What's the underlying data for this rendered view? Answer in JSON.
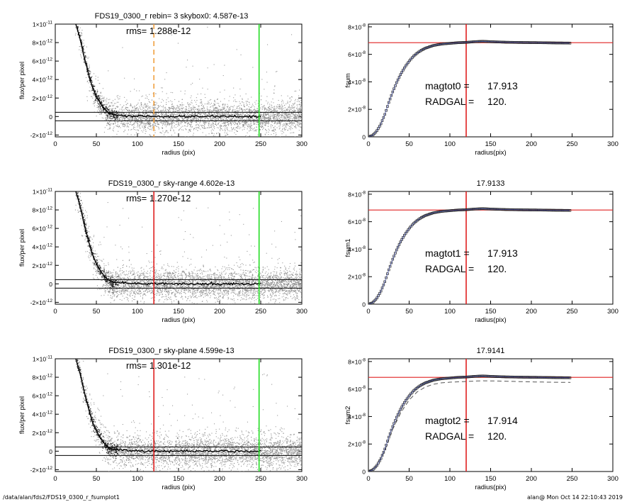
{
  "footer": {
    "path": "/data/alan/fds2/FDS19_0300_r_fsumplot1",
    "stamp": "alan@  Mon Oct 14 22:10:43 2019"
  },
  "colors": {
    "axes": "#000000",
    "scatter": "#9a9a9a",
    "profile": "#000000",
    "radgal_line": "#e02020",
    "boundary_line": "#22dd22",
    "rebin_line": "#f0a040",
    "curve_marker": "#222222",
    "curve_fill": "#3b4bb0"
  },
  "chart_data": [
    {
      "type": "scatter",
      "panel": "left-top",
      "title": "FDS19_0300_r rebin= 3    skybox0:  4.587e-13",
      "annotation": "rms= 1.288e-12",
      "xlabel": "radius (pix)",
      "ylabel": "flux/per pixel",
      "xlim": [
        0,
        300
      ],
      "ylim": [
        -2.2e-12,
        1e-11
      ],
      "xticks": [
        "0",
        "50",
        "100",
        "150",
        "200",
        "250",
        "300"
      ],
      "yticks": [
        {
          "value": -2e-12,
          "mant": "-2×10",
          "exp": "-12"
        },
        {
          "value": 0,
          "mant": "0",
          "exp": ""
        },
        {
          "value": 2e-12,
          "mant": "2×10",
          "exp": "-12"
        },
        {
          "value": 4e-12,
          "mant": "4×10",
          "exp": "-12"
        },
        {
          "value": 6e-12,
          "mant": "6×10",
          "exp": "-12"
        },
        {
          "value": 8e-12,
          "mant": "8×10",
          "exp": "-12"
        },
        {
          "value": 1e-11,
          "mant": "1×10",
          "exp": "-11"
        }
      ],
      "hlines": [
        4.6e-13,
        -4.6e-13
      ],
      "vlines": [
        {
          "x": 120,
          "color": "#f0a040",
          "dashed": true
        },
        {
          "x": 248,
          "color": "#22dd22",
          "dashed": false
        }
      ],
      "profile": {
        "x": [
          25,
          30,
          35,
          40,
          45,
          50,
          55,
          60,
          65,
          70,
          80,
          90,
          100,
          120,
          150,
          200,
          250
        ],
        "y": [
          1e-11,
          8.5e-12,
          6.5e-12,
          4.8e-12,
          3.2e-12,
          2.2e-12,
          1.4e-12,
          8e-13,
          4e-13,
          2e-13,
          1e-13,
          5e-14,
          3e-14,
          1e-14,
          0,
          0,
          0
        ]
      }
    },
    {
      "type": "scatter",
      "panel": "left-middle",
      "title": "FDS19_0300_r sky-range  4.602e-13",
      "annotation": "rms= 1.270e-12",
      "xlabel": "radius (pix)",
      "ylabel": "flux/per pixel",
      "xlim": [
        0,
        300
      ],
      "ylim": [
        -2.2e-12,
        1e-11
      ],
      "xticks": [
        "0",
        "50",
        "100",
        "150",
        "200",
        "250",
        "300"
      ],
      "yticks": [
        {
          "value": -2e-12,
          "mant": "-2×10",
          "exp": "-12"
        },
        {
          "value": 0,
          "mant": "0",
          "exp": ""
        },
        {
          "value": 2e-12,
          "mant": "2×10",
          "exp": "-12"
        },
        {
          "value": 4e-12,
          "mant": "4×10",
          "exp": "-12"
        },
        {
          "value": 6e-12,
          "mant": "6×10",
          "exp": "-12"
        },
        {
          "value": 8e-12,
          "mant": "8×10",
          "exp": "-12"
        },
        {
          "value": 1e-11,
          "mant": "1×10",
          "exp": "-11"
        }
      ],
      "hlines": [
        4.6e-13,
        -4.6e-13
      ],
      "vlines": [
        {
          "x": 120,
          "color": "#e02020",
          "dashed": false
        },
        {
          "x": 248,
          "color": "#22dd22",
          "dashed": false
        }
      ],
      "profile": {
        "x": [
          25,
          30,
          35,
          40,
          45,
          50,
          55,
          60,
          65,
          70,
          80,
          90,
          100,
          120,
          150,
          200,
          250
        ],
        "y": [
          1e-11,
          8.5e-12,
          6.5e-12,
          4.8e-12,
          3.2e-12,
          2.2e-12,
          1.4e-12,
          8e-13,
          4e-13,
          2e-13,
          1e-13,
          5e-14,
          3e-14,
          1e-14,
          0,
          0,
          0
        ]
      }
    },
    {
      "type": "scatter",
      "panel": "left-bottom",
      "title": "FDS19_0300_r sky-plane  4.599e-13",
      "annotation": "rms= 1.301e-12",
      "xlabel": "radius (pix)",
      "ylabel": "flux/per pixel",
      "xlim": [
        0,
        300
      ],
      "ylim": [
        -2.2e-12,
        1e-11
      ],
      "xticks": [
        "0",
        "50",
        "100",
        "150",
        "200",
        "250",
        "300"
      ],
      "yticks": [
        {
          "value": -2e-12,
          "mant": "-2×10",
          "exp": "-12"
        },
        {
          "value": 0,
          "mant": "0",
          "exp": ""
        },
        {
          "value": 2e-12,
          "mant": "2×10",
          "exp": "-12"
        },
        {
          "value": 4e-12,
          "mant": "4×10",
          "exp": "-12"
        },
        {
          "value": 6e-12,
          "mant": "6×10",
          "exp": "-12"
        },
        {
          "value": 8e-12,
          "mant": "8×10",
          "exp": "-12"
        },
        {
          "value": 1e-11,
          "mant": "1×10",
          "exp": "-11"
        }
      ],
      "hlines": [
        4.6e-13,
        -4.6e-13
      ],
      "vlines": [
        {
          "x": 120,
          "color": "#e02020",
          "dashed": false
        },
        {
          "x": 248,
          "color": "#22dd22",
          "dashed": false
        }
      ],
      "profile": {
        "x": [
          25,
          30,
          35,
          40,
          45,
          50,
          55,
          60,
          65,
          70,
          80,
          90,
          100,
          120,
          150,
          200,
          250
        ],
        "y": [
          1e-11,
          8.5e-12,
          6.5e-12,
          4.8e-12,
          3.2e-12,
          2.2e-12,
          1.4e-12,
          8e-13,
          4e-13,
          2e-13,
          1e-13,
          5e-14,
          3e-14,
          1e-14,
          0,
          0,
          0
        ]
      }
    },
    {
      "type": "line",
      "panel": "right-top",
      "title": "",
      "xlabel": "radius(pix)",
      "ylabel": "fsum",
      "xlim": [
        0,
        300
      ],
      "ylim": [
        0,
        8.2e-08
      ],
      "xticks": [
        "0",
        "50",
        "100",
        "150",
        "200",
        "250",
        "300"
      ],
      "yticks": [
        {
          "value": 0,
          "mant": "0",
          "exp": ""
        },
        {
          "value": 2e-08,
          "mant": "2×10",
          "exp": "-8"
        },
        {
          "value": 4e-08,
          "mant": "4×10",
          "exp": "-8"
        },
        {
          "value": 6e-08,
          "mant": "6×10",
          "exp": "-8"
        },
        {
          "value": 8e-08,
          "mant": "8×10",
          "exp": "-8"
        }
      ],
      "annotations": [
        {
          "label": "magtot0 =",
          "value": "17.913"
        },
        {
          "label": "RADGAL =",
          "value": "120."
        }
      ],
      "hline": 6.85e-08,
      "vline": 120,
      "curve": {
        "x": [
          0,
          5,
          10,
          15,
          20,
          25,
          30,
          35,
          40,
          45,
          50,
          55,
          60,
          65,
          70,
          75,
          80,
          90,
          100,
          110,
          120,
          130,
          140,
          150,
          170,
          190,
          210,
          230,
          248
        ],
        "y": [
          0,
          1e-09,
          4e-09,
          9e-09,
          1.6e-08,
          2.5e-08,
          3.3e-08,
          4e-08,
          4.6e-08,
          5.1e-08,
          5.5e-08,
          5.85e-08,
          6.1e-08,
          6.3e-08,
          6.45e-08,
          6.55e-08,
          6.65e-08,
          6.75e-08,
          6.8e-08,
          6.85e-08,
          6.87e-08,
          6.92e-08,
          6.95e-08,
          6.92e-08,
          6.88e-08,
          6.86e-08,
          6.85e-08,
          6.83e-08,
          6.82e-08
        ]
      },
      "dashed_curve": null
    },
    {
      "type": "line",
      "panel": "right-middle",
      "title": "17.9133",
      "xlabel": "radius(pix)",
      "ylabel": "fsum1",
      "xlim": [
        0,
        300
      ],
      "ylim": [
        0,
        8.2e-08
      ],
      "xticks": [
        "0",
        "50",
        "100",
        "150",
        "200",
        "250",
        "300"
      ],
      "yticks": [
        {
          "value": 0,
          "mant": "0",
          "exp": ""
        },
        {
          "value": 2e-08,
          "mant": "2×10",
          "exp": "-8"
        },
        {
          "value": 4e-08,
          "mant": "4×10",
          "exp": "-8"
        },
        {
          "value": 6e-08,
          "mant": "6×10",
          "exp": "-8"
        },
        {
          "value": 8e-08,
          "mant": "8×10",
          "exp": "-8"
        }
      ],
      "annotations": [
        {
          "label": "magtot1 =",
          "value": "17.913"
        },
        {
          "label": "RADGAL =",
          "value": "120."
        }
      ],
      "hline": 6.85e-08,
      "vline": 120,
      "curve": {
        "x": [
          0,
          5,
          10,
          15,
          20,
          25,
          30,
          35,
          40,
          45,
          50,
          55,
          60,
          65,
          70,
          75,
          80,
          90,
          100,
          110,
          120,
          130,
          140,
          150,
          170,
          190,
          210,
          230,
          248
        ],
        "y": [
          0,
          1e-09,
          4e-09,
          9e-09,
          1.6e-08,
          2.5e-08,
          3.3e-08,
          4e-08,
          4.6e-08,
          5.1e-08,
          5.5e-08,
          5.85e-08,
          6.1e-08,
          6.3e-08,
          6.45e-08,
          6.55e-08,
          6.65e-08,
          6.75e-08,
          6.8e-08,
          6.85e-08,
          6.87e-08,
          6.92e-08,
          6.95e-08,
          6.92e-08,
          6.88e-08,
          6.86e-08,
          6.85e-08,
          6.83e-08,
          6.82e-08
        ]
      },
      "dashed_curve": null
    },
    {
      "type": "line",
      "panel": "right-bottom",
      "title": "17.9141",
      "xlabel": "radius(pix)",
      "ylabel": "fsum2",
      "xlim": [
        0,
        300
      ],
      "ylim": [
        0,
        8.2e-08
      ],
      "xticks": [
        "0",
        "50",
        "100",
        "150",
        "200",
        "250",
        "300"
      ],
      "yticks": [
        {
          "value": 0,
          "mant": "0",
          "exp": ""
        },
        {
          "value": 2e-08,
          "mant": "2×10",
          "exp": "-8"
        },
        {
          "value": 4e-08,
          "mant": "4×10",
          "exp": "-8"
        },
        {
          "value": 6e-08,
          "mant": "6×10",
          "exp": "-8"
        },
        {
          "value": 8e-08,
          "mant": "8×10",
          "exp": "-8"
        }
      ],
      "annotations": [
        {
          "label": "magtot2 =",
          "value": "17.914"
        },
        {
          "label": "RADGAL =",
          "value": "120."
        }
      ],
      "hline": 6.85e-08,
      "vline": 120,
      "curve": {
        "x": [
          0,
          5,
          10,
          15,
          20,
          25,
          30,
          35,
          40,
          45,
          50,
          55,
          60,
          65,
          70,
          75,
          80,
          90,
          100,
          110,
          120,
          130,
          140,
          150,
          170,
          190,
          210,
          230,
          248
        ],
        "y": [
          0,
          1e-09,
          4e-09,
          9e-09,
          1.6e-08,
          2.5e-08,
          3.3e-08,
          4e-08,
          4.6e-08,
          5.1e-08,
          5.5e-08,
          5.85e-08,
          6.1e-08,
          6.3e-08,
          6.45e-08,
          6.55e-08,
          6.65e-08,
          6.75e-08,
          6.8e-08,
          6.85e-08,
          6.87e-08,
          6.92e-08,
          6.95e-08,
          6.92e-08,
          6.88e-08,
          6.86e-08,
          6.85e-08,
          6.83e-08,
          6.82e-08
        ]
      },
      "dashed_curve": {
        "x": [
          0,
          10,
          20,
          30,
          40,
          50,
          60,
          70,
          80,
          90,
          100,
          120,
          140,
          160,
          180,
          200,
          220,
          248
        ],
        "y": [
          0,
          4e-09,
          1.5e-08,
          3.1e-08,
          4.3e-08,
          5.2e-08,
          5.8e-08,
          6.15e-08,
          6.35e-08,
          6.45e-08,
          6.5e-08,
          6.55e-08,
          6.6e-08,
          6.58e-08,
          6.55e-08,
          6.52e-08,
          6.5e-08,
          6.48e-08
        ]
      }
    }
  ]
}
